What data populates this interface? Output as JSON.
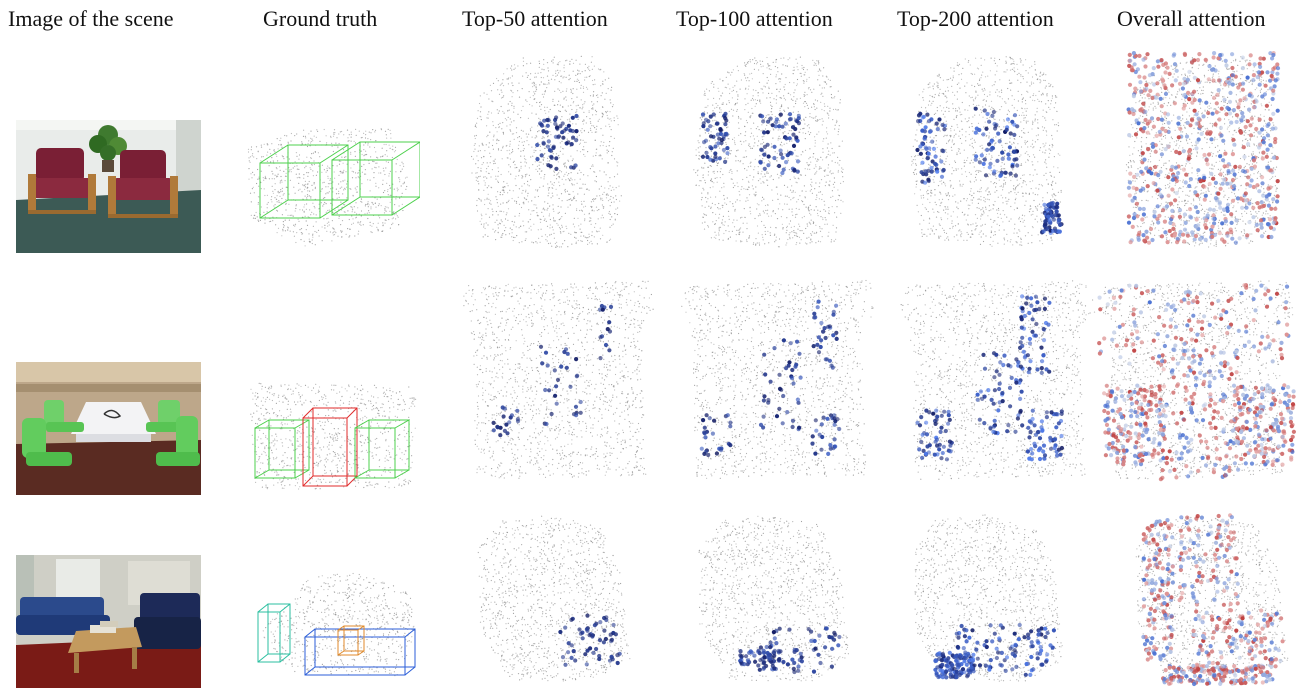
{
  "headers": [
    "Image of the scene",
    "Ground truth",
    "Top-50 attention",
    "Top-100 attention",
    "Top-200 attention",
    "Overall attention"
  ],
  "scenes": [
    {
      "id": "scene-1-armchairs"
    },
    {
      "id": "scene-2-table-chairs"
    },
    {
      "id": "scene-3-sofas"
    }
  ],
  "colors": {
    "points_gray": "#9a9a9a",
    "attention_blue": "#2f5f9e",
    "attention_red": "#c0392b",
    "box_green": "#4cd04c",
    "box_red": "#e02b2b",
    "box_blue": "#2b5ed8",
    "box_orange": "#e08a2b",
    "box_teal": "#2bbfa0"
  }
}
